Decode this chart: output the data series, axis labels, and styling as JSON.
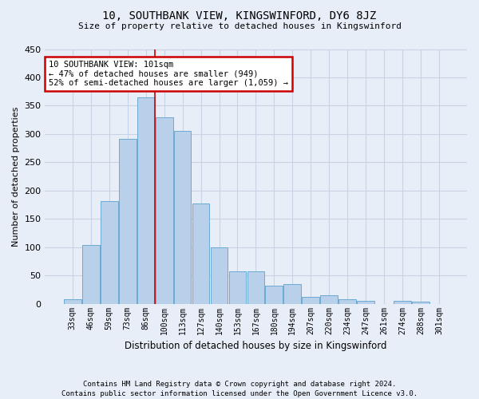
{
  "title": "10, SOUTHBANK VIEW, KINGSWINFORD, DY6 8JZ",
  "subtitle": "Size of property relative to detached houses in Kingswinford",
  "xlabel": "Distribution of detached houses by size in Kingswinford",
  "ylabel": "Number of detached properties",
  "footnote1": "Contains HM Land Registry data © Crown copyright and database right 2024.",
  "footnote2": "Contains public sector information licensed under the Open Government Licence v3.0.",
  "categories": [
    "33sqm",
    "46sqm",
    "59sqm",
    "73sqm",
    "86sqm",
    "100sqm",
    "113sqm",
    "127sqm",
    "140sqm",
    "153sqm",
    "167sqm",
    "180sqm",
    "194sqm",
    "207sqm",
    "220sqm",
    "234sqm",
    "247sqm",
    "261sqm",
    "274sqm",
    "288sqm",
    "301sqm"
  ],
  "values": [
    8,
    104,
    182,
    291,
    365,
    330,
    305,
    177,
    100,
    58,
    58,
    32,
    35,
    12,
    15,
    8,
    5,
    0,
    5,
    4,
    0
  ],
  "bar_color": "#b8d0ea",
  "bar_edge_color": "#6aaad4",
  "grid_color": "#c8d4e4",
  "background_color": "#e8eef8",
  "annotation_line1": "10 SOUTHBANK VIEW: 101sqm",
  "annotation_line2": "← 47% of detached houses are smaller (949)",
  "annotation_line3": "52% of semi-detached houses are larger (1,059) →",
  "annotation_box_color": "#ffffff",
  "annotation_box_edge_color": "#cc0000",
  "redline_bin_index": 5,
  "ylim": [
    0,
    450
  ],
  "yticks": [
    0,
    50,
    100,
    150,
    200,
    250,
    300,
    350,
    400,
    450
  ]
}
